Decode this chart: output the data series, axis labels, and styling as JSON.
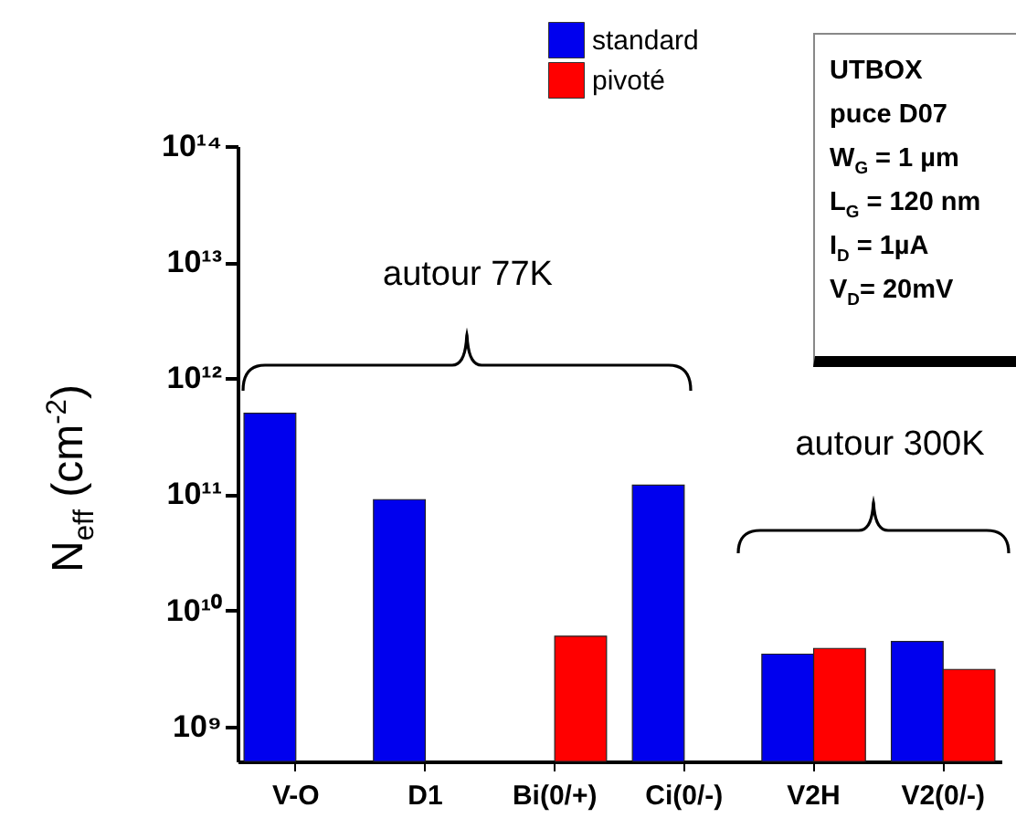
{
  "chart_data": {
    "type": "bar",
    "log": true,
    "ylabel": "N$_{eff}$ (cm$^{-2}$)",
    "categories": [
      "V-O",
      "D1",
      "Bi(0/+)",
      "Ci(0/-)",
      "V2H",
      "V2(0/-)"
    ],
    "series": [
      {
        "name": "standard",
        "color": "#0000ee",
        "values": [
          500000000000.0,
          90000000000.0,
          null,
          120000000000.0,
          4200000000.0,
          5400000000.0
        ]
      },
      {
        "name": "pivoté",
        "color": "#ff0000",
        "values": [
          null,
          null,
          6000000000.0,
          null,
          4700000000.0,
          3100000000.0
        ]
      }
    ],
    "ylim": [
      500000000.0,
      100000000000000.0
    ],
    "yticks": [
      {
        "value": 1000000000.0,
        "label": "10⁹"
      },
      {
        "value": 10000000000.0,
        "label": "10¹⁰"
      },
      {
        "value": 100000000000.0,
        "label": "10¹¹"
      },
      {
        "value": 1000000000000.0,
        "label": "10¹²"
      },
      {
        "value": 10000000000000.0,
        "label": "10¹³"
      },
      {
        "value": 100000000000000.0,
        "label": "10¹⁴"
      }
    ],
    "legend": "top",
    "annotations": [
      "autour 77K",
      "autour 300K",
      "UTBOX",
      "puce D07",
      "W$_{G}$ = 1 µm",
      "L$_{G}$ = 120 nm",
      "I$_{D}$ = 1µA",
      "V$_{D}$= 20mV"
    ]
  }
}
